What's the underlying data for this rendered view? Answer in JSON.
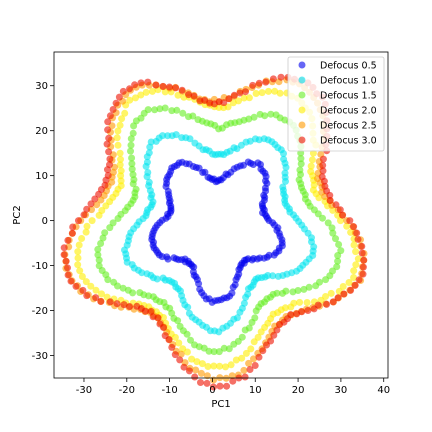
{
  "chart_data": {
    "type": "scatter",
    "xlabel": "PC1",
    "ylabel": "PC2",
    "xlim": [
      -37,
      41
    ],
    "ylim": [
      -35,
      37.5
    ],
    "xticks": [
      -30,
      -20,
      -10,
      0,
      10,
      20,
      30,
      40
    ],
    "yticks": [
      -30,
      -20,
      -10,
      0,
      10,
      20,
      30
    ],
    "grid": false,
    "legend_position": "top-right",
    "point_alpha": 0.6,
    "series": [
      {
        "name": "Defocus 0.5",
        "color": "#0000ee",
        "ring": {
          "cx": 1,
          "cy": -1,
          "r0": 13.5,
          "amp": 2.8,
          "k": 5,
          "phase": 1.57
        }
      },
      {
        "name": "Defocus 1.0",
        "color": "#00e5ee",
        "ring": {
          "cx": 1,
          "cy": -1,
          "r0": 19.5,
          "amp": 3.5,
          "k": 5,
          "phase": 1.57
        }
      },
      {
        "name": "Defocus 1.5",
        "color": "#66ee22",
        "ring": {
          "cx": 1,
          "cy": -0.5,
          "r0": 25.0,
          "amp": 4.0,
          "k": 5,
          "phase": 1.57
        }
      },
      {
        "name": "Defocus 2.0",
        "color": "#ffee00",
        "ring": {
          "cx": 1,
          "cy": 0,
          "r0": 29.0,
          "amp": 4.5,
          "k": 5,
          "phase": 1.57
        }
      },
      {
        "name": "Defocus 2.5",
        "color": "#ff9900",
        "ring": {
          "cx": 1,
          "cy": 0,
          "r0": 31.0,
          "amp": 4.8,
          "k": 5,
          "phase": 1.57
        }
      },
      {
        "name": "Defocus 3.0",
        "color": "#ee1100",
        "ring": {
          "cx": 1,
          "cy": 0,
          "r0": 31.5,
          "amp": 5.0,
          "k": 5,
          "phase": 1.57
        }
      }
    ]
  }
}
